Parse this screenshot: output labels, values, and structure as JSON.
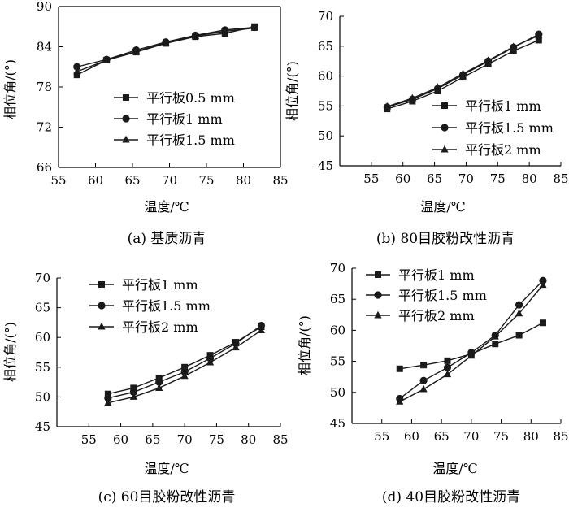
{
  "chart_data": [
    {
      "type": "line",
      "caption": "(a) 基质沥青",
      "xlabel": "温度/℃",
      "ylabel": "相位角/(°)",
      "xlim": [
        55,
        85
      ],
      "ylim": [
        66,
        90
      ],
      "xticks": [
        55,
        60,
        65,
        70,
        75,
        80,
        85
      ],
      "yticks": [
        66,
        72,
        78,
        84,
        90
      ],
      "grid": false,
      "legend_position": "center",
      "x": [
        57.5,
        61.5,
        65.5,
        69.5,
        73.5,
        77.5,
        81.5
      ],
      "series": [
        {
          "name": "平行板0.5 mm",
          "marker": "square",
          "values": [
            79.8,
            82.0,
            83.2,
            84.5,
            85.5,
            86.0,
            87.0
          ]
        },
        {
          "name": "平行板1 mm",
          "marker": "circle",
          "values": [
            81.0,
            82.1,
            83.5,
            84.7,
            85.7,
            86.5,
            86.9
          ]
        },
        {
          "name": "平行板1.5 mm",
          "marker": "triangle",
          "values": [
            80.3,
            82.0,
            83.3,
            84.6,
            85.6,
            86.3,
            86.8
          ]
        }
      ]
    },
    {
      "type": "line",
      "caption": "(b) 80目胶粉改性沥青",
      "xlabel": "温度/℃",
      "ylabel": "相位角/(°)",
      "xlim": [
        50,
        85
      ],
      "ylim": [
        45,
        70
      ],
      "xticks": [
        55,
        60,
        65,
        70,
        75,
        80,
        85
      ],
      "yticks": [
        45,
        50,
        55,
        60,
        65,
        70
      ],
      "grid": false,
      "legend_position": "bottom-right",
      "x": [
        57.5,
        61.5,
        65.5,
        69.5,
        73.5,
        77.5,
        81.5
      ],
      "series": [
        {
          "name": "平行板1 mm",
          "marker": "square",
          "values": [
            54.5,
            55.8,
            57.5,
            59.8,
            62.0,
            64.2,
            66.0
          ]
        },
        {
          "name": "平行板1.5 mm",
          "marker": "circle",
          "values": [
            54.8,
            56.1,
            57.9,
            60.2,
            62.5,
            64.8,
            67.0
          ]
        },
        {
          "name": "平行板2 mm",
          "marker": "triangle",
          "values": [
            54.9,
            56.3,
            58.1,
            60.4,
            62.6,
            64.9,
            66.8
          ]
        }
      ]
    },
    {
      "type": "line",
      "caption": "(c) 60目胶粉改性沥青",
      "xlabel": "温度/℃",
      "ylabel": "相位角/(°)",
      "xlim": [
        50,
        85
      ],
      "ylim": [
        45,
        70
      ],
      "xticks": [
        55,
        60,
        65,
        70,
        75,
        80,
        85
      ],
      "yticks": [
        45,
        50,
        55,
        60,
        65,
        70
      ],
      "grid": false,
      "legend_position": "top-left",
      "x": [
        58,
        62,
        66,
        70,
        74,
        78,
        82
      ],
      "series": [
        {
          "name": "平行板1 mm",
          "marker": "square",
          "values": [
            50.5,
            51.5,
            53.2,
            55.0,
            57.0,
            59.2,
            61.8
          ]
        },
        {
          "name": "平行板1.5 mm",
          "marker": "circle",
          "values": [
            49.8,
            50.8,
            52.5,
            54.2,
            56.5,
            59.0,
            62.0
          ]
        },
        {
          "name": "平行板2 mm",
          "marker": "triangle",
          "values": [
            49.0,
            50.0,
            51.5,
            53.5,
            55.8,
            58.3,
            61.2
          ]
        }
      ]
    },
    {
      "type": "line",
      "caption": "(d) 40目胶粉改性沥青",
      "xlabel": "温度/℃",
      "ylabel": "相位角/(°)",
      "xlim": [
        50,
        85
      ],
      "ylim": [
        45,
        70
      ],
      "xticks": [
        55,
        60,
        65,
        70,
        75,
        80,
        85
      ],
      "yticks": [
        45,
        50,
        55,
        60,
        65,
        70
      ],
      "grid": false,
      "legend_position": "top-left",
      "x": [
        58,
        62,
        66,
        70,
        74,
        78,
        82
      ],
      "series": [
        {
          "name": "平行板1 mm",
          "marker": "square",
          "values": [
            53.8,
            54.4,
            55.1,
            56.2,
            57.8,
            59.2,
            61.2
          ]
        },
        {
          "name": "平行板1.5 mm",
          "marker": "circle",
          "values": [
            49.0,
            51.9,
            54.0,
            56.4,
            59.2,
            64.1,
            68.0
          ]
        },
        {
          "name": "平行板2 mm",
          "marker": "triangle",
          "values": [
            48.5,
            50.5,
            52.9,
            55.9,
            59.0,
            62.7,
            67.3
          ]
        }
      ]
    }
  ]
}
